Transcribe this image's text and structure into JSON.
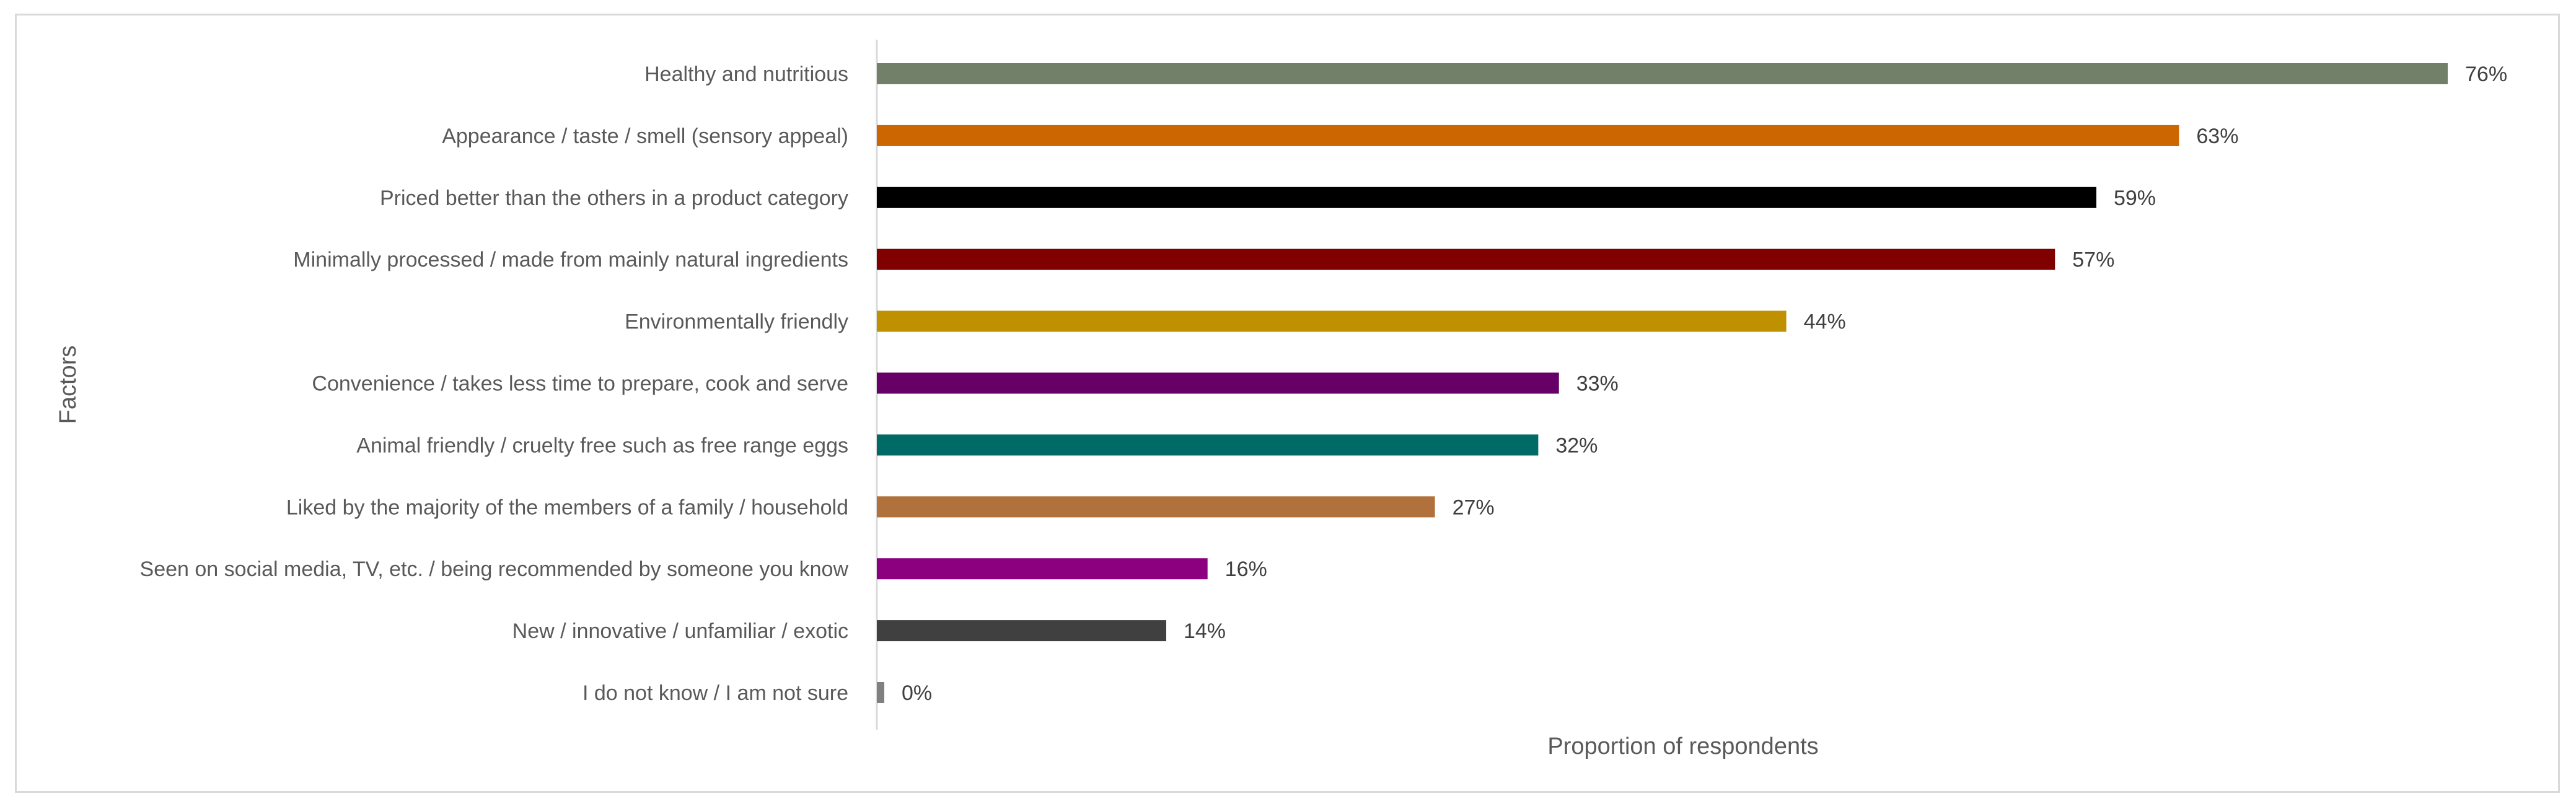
{
  "chart_data": {
    "type": "bar",
    "orientation": "horizontal",
    "title": "",
    "xlabel": "Proportion of respondents",
    "ylabel": "Factors",
    "xlim": [
      0,
      80
    ],
    "grid": false,
    "legend": "none",
    "categories": [
      "Healthy and nutritious",
      "Appearance / taste / smell (sensory appeal)",
      "Priced better than the others in a product category",
      "Minimally processed / made from mainly natural ingredients",
      "Environmentally friendly",
      "Convenience / takes less time to prepare, cook and serve",
      "Animal friendly / cruelty free such as free range eggs",
      "Liked by the majority of the members of a family / household",
      "Seen on social media, TV, etc. / being recommended by someone you know",
      "New / innovative / unfamiliar / exotic",
      "I do not know / I am not sure"
    ],
    "values": [
      76,
      63,
      59,
      57,
      44,
      33,
      32,
      27,
      16,
      14,
      0
    ],
    "value_labels": [
      "76%",
      "63%",
      "59%",
      "57%",
      "44%",
      "33%",
      "32%",
      "27%",
      "16%",
      "14%",
      "0%"
    ],
    "colors": [
      "#738069",
      "#cc6600",
      "#000000",
      "#800000",
      "#bf9000",
      "#660066",
      "#006b66",
      "#b0713c",
      "#8c0080",
      "#404040",
      "#808080"
    ]
  }
}
